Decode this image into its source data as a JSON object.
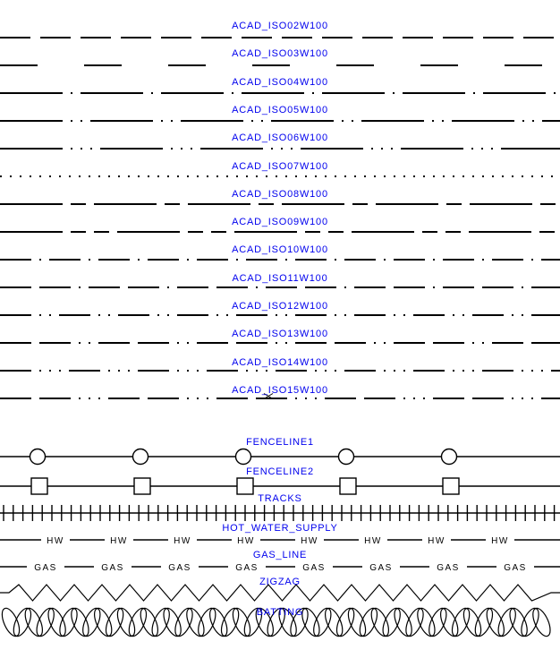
{
  "colors": {
    "label": "#0000EE",
    "line": "#000000",
    "background": "#FFFFFF"
  },
  "iso_linetypes": [
    {
      "label": "ACAD_ISO02W100",
      "dash": "34 11"
    },
    {
      "label": "ACAD_ISO03W100",
      "dash": "42 52"
    },
    {
      "label": "ACAD_ISO04W100",
      "dash": "70 9 2 9"
    },
    {
      "label": "ACAD_ISO05W100",
      "dash": "70 9 2 9 2 9"
    },
    {
      "label": "ACAD_ISO06W100",
      "dash": "70 9 2 9 2 9 2 9"
    },
    {
      "label": "ACAD_ISO07W100",
      "dash": "2 9"
    },
    {
      "label": "ACAD_ISO08W100",
      "dash": "70 9 17 9"
    },
    {
      "label": "ACAD_ISO09W100",
      "dash": "70 9 17 9 17 9"
    },
    {
      "label": "ACAD_ISO10W100",
      "dash": "35 9 2 9"
    },
    {
      "label": "ACAD_ISO11W100",
      "dash": "35 9 35 9 2 9"
    },
    {
      "label": "ACAD_ISO12W100",
      "dash": "35 9 2 9 2 9"
    },
    {
      "label": "ACAD_ISO13W100",
      "dash": "35 9 35 9 2 9 2 9"
    },
    {
      "label": "ACAD_ISO14W100",
      "dash": "35 9 2 9 2 9 2 9"
    },
    {
      "label": "ACAD_ISO15W100",
      "dash": "35 9 35 9 2 9 2 9 2 9"
    }
  ],
  "special_linetypes": [
    {
      "label": "FENCELINE1",
      "style": "line-with-circles"
    },
    {
      "label": "FENCELINE2",
      "style": "line-with-squares"
    },
    {
      "label": "TRACKS",
      "style": "line-with-ticks"
    },
    {
      "label": "HOT_WATER_SUPPLY",
      "style": "dash-with-text",
      "inline_text": "HW"
    },
    {
      "label": "GAS_LINE",
      "style": "dash-with-text",
      "inline_text": "GAS"
    },
    {
      "label": "ZIGZAG",
      "style": "zigzag"
    },
    {
      "label": "BATTING",
      "style": "batting-loops"
    }
  ]
}
